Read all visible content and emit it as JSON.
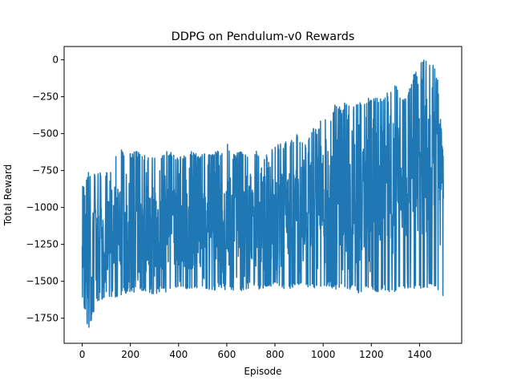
{
  "chart_data": {
    "type": "line",
    "title": "DDPG on Pendulum-v0 Rewards",
    "xlabel": "Episode",
    "ylabel": "Total Reward",
    "xlim": [
      -75,
      1575
    ],
    "ylim": [
      -1920,
      90
    ],
    "x_ticks": [
      0,
      200,
      400,
      600,
      800,
      1000,
      1200,
      1400
    ],
    "x_tick_labels": [
      "0",
      "200",
      "400",
      "600",
      "800",
      "1000",
      "1200",
      "1400"
    ],
    "y_ticks": [
      0,
      -250,
      -500,
      -750,
      -1000,
      -1250,
      -1500,
      -1750
    ],
    "y_tick_labels": [
      "0",
      "−250",
      "−500",
      "−750",
      "−1000",
      "−1250",
      "−1500",
      "−1750"
    ],
    "grid": false,
    "legend": "none",
    "series": [
      {
        "color": "#1f77b4",
        "x": [
          0,
          25,
          50,
          75,
          100,
          125,
          150,
          175,
          200,
          225,
          250,
          275,
          300,
          325,
          350,
          375,
          400,
          425,
          450,
          475,
          500,
          525,
          550,
          575,
          600,
          625,
          650,
          675,
          700,
          725,
          750,
          775,
          800,
          825,
          850,
          875,
          900,
          925,
          950,
          975,
          1000,
          1025,
          1050,
          1075,
          1100,
          1125,
          1150,
          1175,
          1200,
          1225,
          1250,
          1275,
          1300,
          1325,
          1350,
          1375,
          1400,
          1425,
          1450,
          1475,
          1499
        ],
        "y_min": [
          -1600,
          -1830,
          -1700,
          -1650,
          -1600,
          -1620,
          -1600,
          -1580,
          -1580,
          -1570,
          -1580,
          -1580,
          -1590,
          -1570,
          -1580,
          -1560,
          -1570,
          -1560,
          -1560,
          -1550,
          -1560,
          -1560,
          -1570,
          -1550,
          -1560,
          -1560,
          -1570,
          -1560,
          -1540,
          -1550,
          -1560,
          -1550,
          -1540,
          -1540,
          -1560,
          -1540,
          -1530,
          -1550,
          -1560,
          -1540,
          -1550,
          -1540,
          -1560,
          -1550,
          -1560,
          -1560,
          -1590,
          -1560,
          -1560,
          -1580,
          -1560,
          -1570,
          -1580,
          -1560,
          -1550,
          -1570,
          -1550,
          -1560,
          -1540,
          -1560,
          -1600
        ],
        "y_max": [
          -860,
          -760,
          -760,
          -760,
          -750,
          -760,
          -530,
          -650,
          -630,
          -620,
          -640,
          -660,
          -640,
          -650,
          -620,
          -630,
          -650,
          -640,
          -620,
          -630,
          -640,
          -620,
          -620,
          -610,
          -560,
          -640,
          -620,
          -630,
          -610,
          -620,
          -650,
          -640,
          -560,
          -570,
          -550,
          -540,
          -470,
          -570,
          -460,
          -470,
          -340,
          -430,
          -300,
          -320,
          -270,
          -320,
          -260,
          -270,
          -250,
          -260,
          -250,
          -200,
          -140,
          -260,
          -250,
          -100,
          0,
          0,
          0,
          -120,
          -640
        ],
        "y_mid": [
          -1180,
          -1350,
          -1200,
          -1250,
          -1180,
          -1220,
          -1200,
          -1180,
          -1180,
          -1190,
          -1170,
          -1160,
          -1170,
          -1160,
          -1150,
          -1150,
          -1140,
          -1150,
          -1140,
          -1120,
          -1130,
          -1130,
          -1120,
          -1110,
          -1100,
          -1110,
          -1090,
          -1100,
          -1080,
          -1090,
          -1080,
          -1070,
          -1060,
          -1050,
          -1040,
          -1030,
          -1010,
          -1000,
          -980,
          -970,
          -960,
          -940,
          -930,
          -920,
          -910,
          -900,
          -880,
          -880,
          -860,
          -850,
          -840,
          -830,
          -810,
          -800,
          -790,
          -780,
          -760,
          -740,
          -720,
          -700,
          -800
        ]
      }
    ]
  }
}
